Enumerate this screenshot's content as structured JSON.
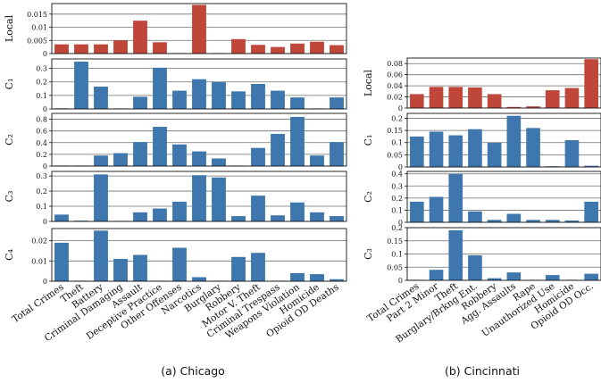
{
  "figure": {
    "caption_a": "(a) Chicago",
    "caption_b": "(b) Cincinnati"
  },
  "colors": {
    "local": "#c0463a",
    "component": "#3d77ad",
    "axis": "#111111",
    "grid": "#6f6f6f"
  },
  "chart_data": [
    {
      "type": "bar",
      "panel": "a",
      "ylabel": "Local",
      "categories": [
        "Total Crimes",
        "Theft",
        "Battery",
        "Criminal Damaging",
        "Assault",
        "Deceptive Practice",
        "Other Offenses",
        "Narcotics",
        "Burglary",
        "Robbery",
        "Motor V. Theft",
        "Criminal Trespass",
        "Weapons Violation",
        "Homicide",
        "Opioid OD Deaths"
      ],
      "values": [
        0.0035,
        0.0035,
        0.0035,
        0.005,
        0.0125,
        0.0043,
        0,
        0.0185,
        0,
        0.0055,
        0.0033,
        0.0025,
        0.0038,
        0.0045,
        0.0032
      ],
      "ylim": [
        0,
        0.019
      ],
      "yticks": [
        "0",
        "0.005",
        "0.01",
        "0.015"
      ],
      "ytick_values": [
        0,
        0.005,
        0.01,
        0.015
      ],
      "color": "#c0463a",
      "grid": true
    },
    {
      "type": "bar",
      "panel": "a",
      "ylabel": "C₁",
      "categories": [
        "Total Crimes",
        "Theft",
        "Battery",
        "Criminal Damaging",
        "Assault",
        "Deceptive Practice",
        "Other Offenses",
        "Narcotics",
        "Burglary",
        "Robbery",
        "Motor V. Theft",
        "Criminal Trespass",
        "Weapons Violation",
        "Homicide",
        "Opioid OD Deaths"
      ],
      "values": [
        0.005,
        0.35,
        0.165,
        0,
        0.09,
        0.305,
        0.135,
        0.22,
        0.2,
        0.13,
        0.185,
        0.135,
        0.085,
        0,
        0.085
      ],
      "ylim": [
        0,
        0.37
      ],
      "yticks": [
        "0",
        "0.1",
        "0.2",
        "0.3"
      ],
      "ytick_values": [
        0,
        0.1,
        0.2,
        0.3
      ],
      "color": "#3d77ad",
      "grid": true
    },
    {
      "type": "bar",
      "panel": "a",
      "ylabel": "C₂",
      "categories": [
        "Total Crimes",
        "Theft",
        "Battery",
        "Criminal Damaging",
        "Assault",
        "Deceptive Practice",
        "Other Offenses",
        "Narcotics",
        "Burglary",
        "Robbery",
        "Motor V. Theft",
        "Criminal Trespass",
        "Weapons Violation",
        "Homicide",
        "Opioid OD Deaths"
      ],
      "values": [
        0.01,
        0.01,
        0.18,
        0.22,
        0.41,
        0.67,
        0.37,
        0.25,
        0.13,
        0,
        0.31,
        0.55,
        0.84,
        0.18,
        0.41
      ],
      "ylim": [
        0,
        0.9
      ],
      "yticks": [
        "0",
        "0.2",
        "0.4",
        "0.6",
        "0.8"
      ],
      "ytick_values": [
        0,
        0.2,
        0.4,
        0.6,
        0.8
      ],
      "color": "#3d77ad",
      "grid": true
    },
    {
      "type": "bar",
      "panel": "a",
      "ylabel": "C₃",
      "categories": [
        "Total Crimes",
        "Theft",
        "Battery",
        "Criminal Damaging",
        "Assault",
        "Deceptive Practice",
        "Other Offenses",
        "Narcotics",
        "Burglary",
        "Robbery",
        "Motor V. Theft",
        "Criminal Trespass",
        "Weapons Violation",
        "Homicide",
        "Opioid OD Deaths"
      ],
      "values": [
        0.045,
        0.005,
        0.31,
        0,
        0.06,
        0.085,
        0.13,
        0.305,
        0.29,
        0.035,
        0.17,
        0.04,
        0.125,
        0.06,
        0.035
      ],
      "ylim": [
        0,
        0.33
      ],
      "yticks": [
        "0",
        "0.1",
        "0.2",
        "0.3"
      ],
      "ytick_values": [
        0,
        0.1,
        0.2,
        0.3
      ],
      "color": "#3d77ad",
      "grid": true
    },
    {
      "type": "bar",
      "panel": "a",
      "ylabel": "C₄",
      "categories": [
        "Total Crimes",
        "Theft",
        "Battery",
        "Criminal Damaging",
        "Assault",
        "Deceptive Practice",
        "Other Offenses",
        "Narcotics",
        "Burglary",
        "Robbery",
        "Motor V. Theft",
        "Criminal Trespass",
        "Weapons Violation",
        "Homicide",
        "Opioid OD Deaths"
      ],
      "values": [
        0.019,
        0,
        0.025,
        0.011,
        0.013,
        0,
        0.0165,
        0.002,
        0,
        0.012,
        0.014,
        0,
        0.004,
        0.0035,
        0.001
      ],
      "ylim": [
        0,
        0.026
      ],
      "yticks": [
        "0",
        "0.01",
        "0.02"
      ],
      "ytick_values": [
        0,
        0.01,
        0.02
      ],
      "color": "#3d77ad",
      "grid": true
    },
    {
      "type": "bar",
      "panel": "b",
      "ylabel": "Local",
      "categories": [
        "Total Crimes",
        "Part 2 Minor",
        "Theft",
        "Burglary/Brkng Ent.",
        "Robbery",
        "Agg. Assaults",
        "Rape",
        "Unauthorized Use",
        "Homicide",
        "Opioid OD Occ."
      ],
      "values": [
        0.025,
        0.038,
        0.038,
        0.037,
        0.025,
        0.002,
        0.003,
        0.032,
        0.036,
        0.088
      ],
      "ylim": [
        0,
        0.09
      ],
      "yticks": [
        "0",
        "0.02",
        "0.04",
        "0.06",
        "0.08"
      ],
      "ytick_values": [
        0,
        0.02,
        0.04,
        0.06,
        0.08
      ],
      "color": "#c0463a",
      "grid": true
    },
    {
      "type": "bar",
      "panel": "b",
      "ylabel": "C₁",
      "categories": [
        "Total Crimes",
        "Part 2 Minor",
        "Theft",
        "Burglary/Brkng Ent.",
        "Robbery",
        "Agg. Assaults",
        "Rape",
        "Unauthorized Use",
        "Homicide",
        "Opioid OD Occ."
      ],
      "values": [
        0.125,
        0.145,
        0.13,
        0.155,
        0.1,
        0.21,
        0.16,
        0.003,
        0.11,
        0.005
      ],
      "ylim": [
        0,
        0.22
      ],
      "yticks": [
        "0",
        "0.05",
        "0.1",
        "0.15",
        "0.2"
      ],
      "ytick_values": [
        0,
        0.05,
        0.1,
        0.15,
        0.2
      ],
      "color": "#3d77ad",
      "grid": true
    },
    {
      "type": "bar",
      "panel": "b",
      "ylabel": "C₂",
      "categories": [
        "Total Crimes",
        "Part 2 Minor",
        "Theft",
        "Burglary/Brkng Ent.",
        "Robbery",
        "Agg. Assaults",
        "Rape",
        "Unauthorized Use",
        "Homicide",
        "Opioid OD Occ."
      ],
      "values": [
        0.17,
        0.21,
        0.4,
        0.09,
        0.02,
        0.07,
        0.02,
        0.02,
        0.015,
        0.17
      ],
      "ylim": [
        0,
        0.42
      ],
      "yticks": [
        "0",
        "0.1",
        "0.2",
        "0.3",
        "0.4"
      ],
      "ytick_values": [
        0,
        0.1,
        0.2,
        0.3,
        0.4
      ],
      "color": "#3d77ad",
      "grid": true
    },
    {
      "type": "bar",
      "panel": "b",
      "ylabel": "C₃",
      "categories": [
        "Total Crimes",
        "Part 2 Minor",
        "Theft",
        "Burglary/Brkng Ent.",
        "Robbery",
        "Agg. Assaults",
        "Rape",
        "Unauthorized Use",
        "Homicide",
        "Opioid OD Occ."
      ],
      "values": [
        0,
        0.04,
        0.19,
        0.095,
        0.008,
        0.03,
        0,
        0.02,
        0,
        0.025
      ],
      "ylim": [
        0,
        0.2
      ],
      "yticks": [
        "0",
        "0.05",
        "0.1",
        "0.15",
        "0.2"
      ],
      "ytick_values": [
        0,
        0.05,
        0.1,
        0.15,
        0.2
      ],
      "color": "#3d77ad",
      "grid": true
    }
  ]
}
